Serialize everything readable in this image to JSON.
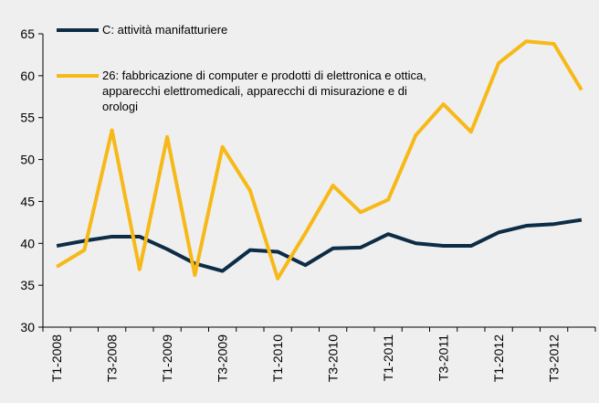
{
  "chart_data": {
    "type": "line",
    "categories": [
      "T1-2008",
      null,
      "T3-2008",
      null,
      "T1-2009",
      null,
      "T3-2009",
      null,
      "T1-2010",
      null,
      "T3-2010",
      null,
      "T1-2011",
      null,
      "T3-2011",
      null,
      "T1-2012",
      null,
      "T3-2012",
      null
    ],
    "series": [
      {
        "name": "C: attività manifatturiere",
        "color": "#0d2c45",
        "values": [
          39.7,
          40.3,
          40.8,
          40.8,
          39.3,
          37.6,
          36.7,
          39.2,
          39.0,
          37.4,
          39.4,
          39.5,
          41.1,
          40.0,
          39.7,
          39.7,
          41.3,
          42.1,
          42.3,
          42.8
        ]
      },
      {
        "name": "26: fabbricazione di computer e prodotti di elettronica e ottica, apparecchi elettromedicali, apparecchi di misurazione e di orologi",
        "color": "#f7b918",
        "values": [
          37.2,
          39.2,
          53.5,
          36.9,
          52.7,
          36.2,
          51.5,
          46.3,
          35.8,
          41.2,
          46.9,
          43.7,
          45.2,
          52.9,
          56.6,
          53.3,
          61.5,
          64.1,
          63.8,
          58.3
        ]
      }
    ],
    "ylim": [
      30,
      65
    ],
    "yticks": [
      30,
      35,
      40,
      45,
      50,
      55,
      60,
      65
    ]
  }
}
